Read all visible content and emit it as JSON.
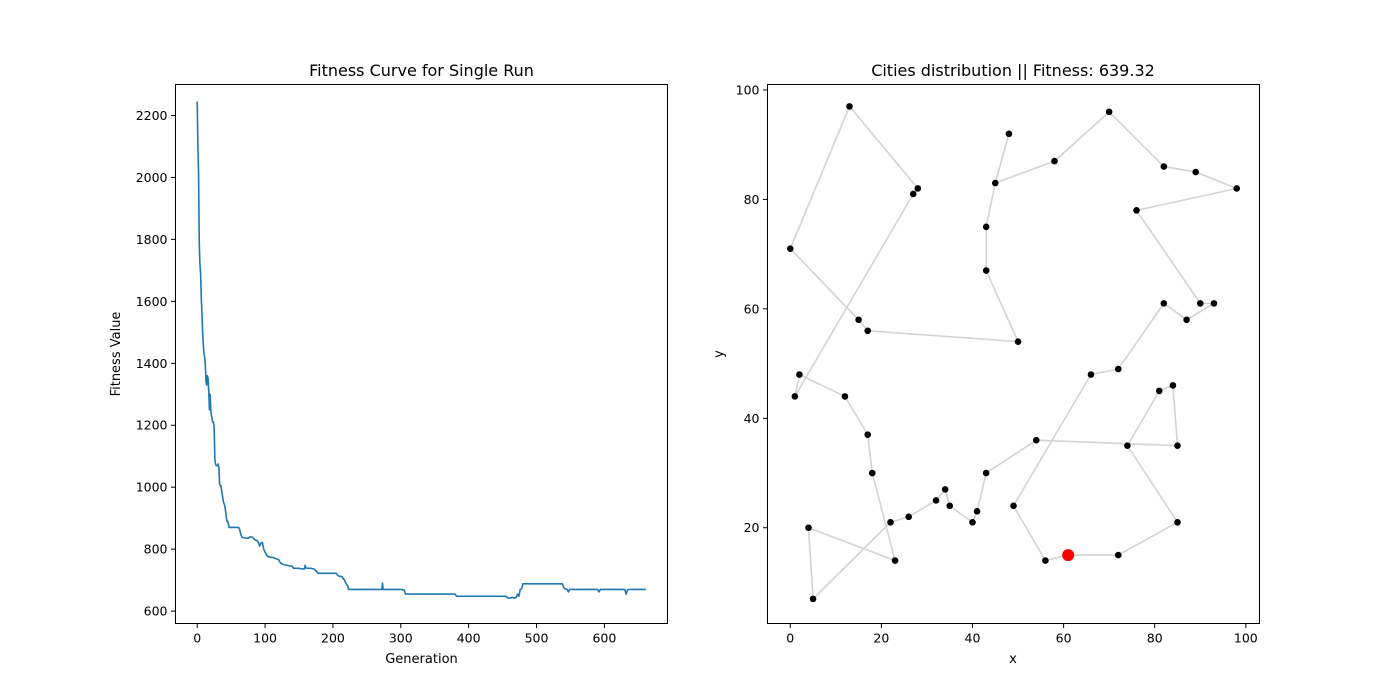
{
  "chart_data": [
    {
      "type": "line",
      "title": "Fitness Curve for Single Run",
      "xlabel": "Generation",
      "ylabel": "Fitness Value",
      "xlim": [
        -32,
        693
      ],
      "ylim": [
        560,
        2300
      ],
      "xticks": [
        0,
        100,
        200,
        300,
        400,
        500,
        600
      ],
      "yticks": [
        600,
        800,
        1000,
        1200,
        1400,
        1600,
        1800,
        2000,
        2200
      ],
      "grid": false,
      "series": [
        {
          "color": "#1f77b4",
          "points": [
            [
              0,
              2245
            ],
            [
              1,
              2100
            ],
            [
              2,
              2010
            ],
            [
              3,
              1790
            ],
            [
              4,
              1720
            ],
            [
              5,
              1690
            ],
            [
              6,
              1610
            ],
            [
              7,
              1560
            ],
            [
              8,
              1500
            ],
            [
              9,
              1460
            ],
            [
              10,
              1430
            ],
            [
              11,
              1420
            ],
            [
              12,
              1390
            ],
            [
              13,
              1340
            ],
            [
              14,
              1330
            ],
            [
              15,
              1360
            ],
            [
              16,
              1350
            ],
            [
              17,
              1310
            ],
            [
              18,
              1250
            ],
            [
              19,
              1300
            ],
            [
              20,
              1250
            ],
            [
              21,
              1230
            ],
            [
              22,
              1220
            ],
            [
              23,
              1210
            ],
            [
              24,
              1210
            ],
            [
              25,
              1190
            ],
            [
              26,
              1090
            ],
            [
              27,
              1075
            ],
            [
              28,
              1070
            ],
            [
              29,
              1070
            ],
            [
              30,
              1070
            ],
            [
              31,
              1075
            ],
            [
              32,
              1060
            ],
            [
              33,
              1010
            ],
            [
              34,
              1005
            ],
            [
              35,
              1005
            ],
            [
              36,
              990
            ],
            [
              37,
              975
            ],
            [
              38,
              960
            ],
            [
              39,
              950
            ],
            [
              40,
              945
            ],
            [
              41,
              935
            ],
            [
              42,
              920
            ],
            [
              43,
              900
            ],
            [
              44,
              890
            ],
            [
              45,
              890
            ],
            [
              46,
              880
            ],
            [
              47,
              870
            ],
            [
              60,
              870
            ],
            [
              62,
              868
            ],
            [
              64,
              850
            ],
            [
              66,
              838
            ],
            [
              70,
              836
            ],
            [
              75,
              835
            ],
            [
              78,
              840
            ],
            [
              82,
              838
            ],
            [
              85,
              830
            ],
            [
              88,
              828
            ],
            [
              90,
              822
            ],
            [
              92,
              810
            ],
            [
              94,
              820
            ],
            [
              96,
              822
            ],
            [
              98,
              800
            ],
            [
              100,
              790
            ],
            [
              102,
              782
            ],
            [
              104,
              776
            ],
            [
              108,
              774
            ],
            [
              112,
              773
            ],
            [
              115,
              770
            ],
            [
              118,
              768
            ],
            [
              120,
              766
            ],
            [
              122,
              758
            ],
            [
              125,
              752
            ],
            [
              128,
              750
            ],
            [
              132,
              748
            ],
            [
              136,
              746
            ],
            [
              140,
              745
            ],
            [
              142,
              738
            ],
            [
              150,
              738
            ],
            [
              155,
              736
            ],
            [
              158,
              736
            ],
            [
              159,
              748
            ],
            [
              160,
              740
            ],
            [
              162,
              738
            ],
            [
              168,
              738
            ],
            [
              172,
              736
            ],
            [
              175,
              730
            ],
            [
              178,
              722
            ],
            [
              190,
              722
            ],
            [
              205,
              722
            ],
            [
              207,
              715
            ],
            [
              210,
              712
            ],
            [
              213,
              712
            ],
            [
              215,
              705
            ],
            [
              217,
              700
            ],
            [
              219,
              690
            ],
            [
              222,
              680
            ],
            [
              223,
              670
            ],
            [
              272,
              670
            ],
            [
              273,
              690
            ],
            [
              274,
              670
            ],
            [
              300,
              670
            ],
            [
              305,
              668
            ],
            [
              307,
              655
            ],
            [
              380,
              655
            ],
            [
              382,
              648
            ],
            [
              455,
              648
            ],
            [
              458,
              642
            ],
            [
              462,
              642
            ],
            [
              464,
              645
            ],
            [
              466,
              642
            ],
            [
              470,
              644
            ],
            [
              472,
              655
            ],
            [
              474,
              648
            ],
            [
              476,
              670
            ],
            [
              478,
              672
            ],
            [
              480,
              688
            ],
            [
              538,
              688
            ],
            [
              540,
              676
            ],
            [
              542,
              672
            ],
            [
              545,
              670
            ],
            [
              547,
              662
            ],
            [
              549,
              670
            ],
            [
              590,
              670
            ],
            [
              592,
              662
            ],
            [
              594,
              670
            ],
            [
              630,
              670
            ],
            [
              632,
              655
            ],
            [
              634,
              668
            ],
            [
              636,
              670
            ],
            [
              661,
              670
            ]
          ]
        }
      ]
    },
    {
      "type": "scatter",
      "title": "Cities distribution || Fitness: 639.32",
      "xlabel": "x",
      "ylabel": "y",
      "xlim": [
        -5,
        103
      ],
      "ylim": [
        2.5,
        101
      ],
      "xticks": [
        0,
        20,
        40,
        60,
        80,
        100
      ],
      "yticks": [
        20,
        40,
        60,
        80,
        100
      ],
      "grid": false,
      "route_color": "#d3d3d3",
      "point_color": "#000000",
      "start_color": "#ff0000",
      "start": [
        61,
        15
      ],
      "route": [
        [
          61,
          15
        ],
        [
          72,
          15
        ],
        [
          85,
          21
        ],
        [
          74,
          35
        ],
        [
          81,
          45
        ],
        [
          84,
          46
        ],
        [
          85,
          35
        ],
        [
          54,
          36
        ],
        [
          43,
          30
        ],
        [
          41,
          23
        ],
        [
          40,
          21
        ],
        [
          35,
          24
        ],
        [
          34,
          27
        ],
        [
          32,
          25
        ],
        [
          26,
          22
        ],
        [
          22,
          21
        ],
        [
          5,
          7
        ],
        [
          4,
          20
        ],
        [
          23,
          14
        ],
        [
          18,
          30
        ],
        [
          17,
          37
        ],
        [
          12,
          44
        ],
        [
          2,
          48
        ],
        [
          1,
          44
        ],
        [
          27,
          81
        ],
        [
          28,
          82
        ],
        [
          13,
          97
        ],
        [
          0,
          71
        ],
        [
          15,
          58
        ],
        [
          17,
          56
        ],
        [
          50,
          54
        ],
        [
          43,
          67
        ],
        [
          43,
          75
        ],
        [
          45,
          83
        ],
        [
          48,
          92
        ],
        [
          45,
          83
        ],
        [
          58,
          87
        ],
        [
          70,
          96
        ],
        [
          82,
          86
        ],
        [
          89,
          85
        ],
        [
          98,
          82
        ],
        [
          76,
          78
        ],
        [
          90,
          61
        ],
        [
          93,
          61
        ],
        [
          87,
          58
        ],
        [
          82,
          61
        ],
        [
          72,
          49
        ],
        [
          66,
          48
        ],
        [
          49,
          24
        ],
        [
          56,
          14
        ],
        [
          61,
          15
        ]
      ]
    }
  ]
}
